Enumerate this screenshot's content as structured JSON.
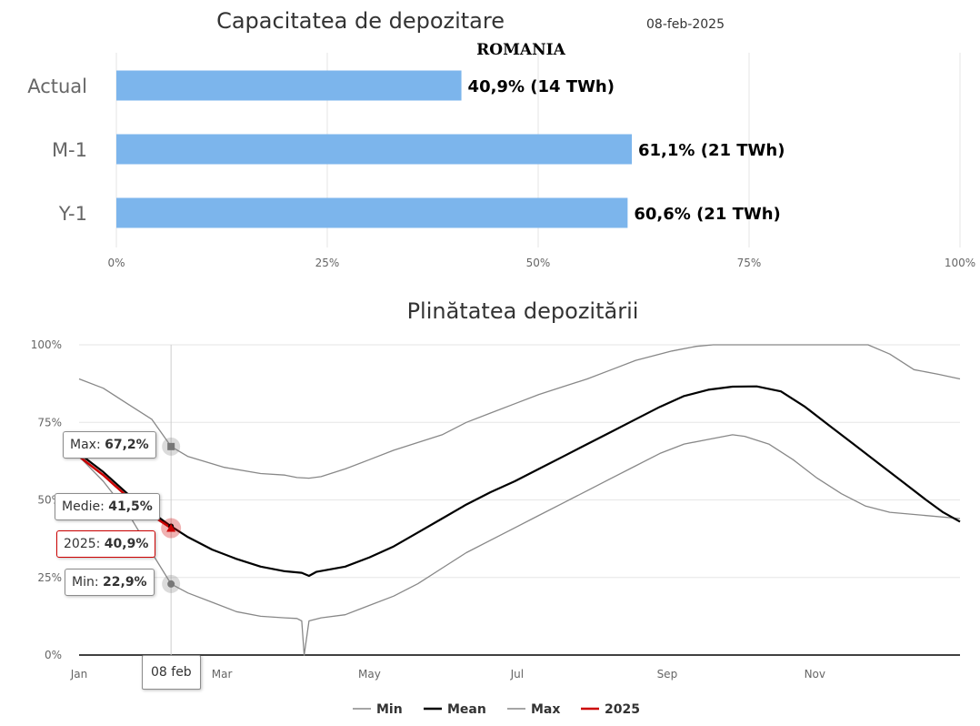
{
  "top_chart": {
    "title": "Capacitatea de depozitare",
    "date": "08-feb-2025",
    "subtitle": "ROMANIA"
  },
  "bottom_chart": {
    "title": "Plinătatea depozitării"
  },
  "tooltips": {
    "crosshair_label": "08 feb",
    "max_label": "Max: ",
    "max_value": "67,2%",
    "mean_label": "Medie: ",
    "mean_value": "41,5%",
    "y2025_label": "2025: ",
    "y2025_value": "40,9%",
    "min_label": "Min: ",
    "min_value": "22,9%"
  },
  "colors": {
    "bar": "#7cb5ec",
    "min_max": "#888888",
    "mean": "#000000",
    "y2025": "#cc0000",
    "grid": "#e6e6e6"
  },
  "chart_data": [
    {
      "type": "bar",
      "orientation": "horizontal",
      "title": "Capacitatea de depozitare 08-feb-2025",
      "subtitle": "ROMANIA",
      "categories": [
        "Actual",
        "M-1",
        "Y-1"
      ],
      "values": [
        40.9,
        61.1,
        60.6
      ],
      "data_labels": [
        "40,9% (14 TWh)",
        "61,1% (21 TWh)",
        "60,6% (21 TWh)"
      ],
      "xlim": [
        0,
        100
      ],
      "x_ticks": [
        0,
        25,
        50,
        75,
        100
      ],
      "x_tick_labels": [
        "0%",
        "25%",
        "50%",
        "75%",
        "100%"
      ]
    },
    {
      "type": "line",
      "title": "Plinătatea depozitării",
      "x_unit": "day_of_year",
      "x_tick_days": [
        0,
        59,
        120,
        181,
        243,
        304
      ],
      "x_tick_labels": [
        "Jan",
        "Mar",
        "May",
        "Jul",
        "Sep",
        "Nov"
      ],
      "xlim": [
        0,
        364
      ],
      "ylim": [
        0,
        100
      ],
      "y_ticks": [
        0,
        25,
        50,
        75,
        100
      ],
      "y_tick_labels": [
        "0%",
        "25%",
        "50%",
        "75%",
        "100%"
      ],
      "highlight_day": 38,
      "legend": [
        "Min",
        "Mean",
        "Max",
        "2025"
      ],
      "series": [
        {
          "name": "Max",
          "points": [
            [
              0,
              89
            ],
            [
              10,
              86
            ],
            [
              20,
              81
            ],
            [
              30,
              76
            ],
            [
              38,
              67.2
            ],
            [
              45,
              64
            ],
            [
              60,
              60.5
            ],
            [
              75,
              58.5
            ],
            [
              85,
              58
            ],
            [
              90,
              57.2
            ],
            [
              95,
              57
            ],
            [
              100,
              57.5
            ],
            [
              110,
              60
            ],
            [
              120,
              63
            ],
            [
              130,
              66
            ],
            [
              140,
              68.5
            ],
            [
              150,
              71
            ],
            [
              160,
              75
            ],
            [
              170,
              78
            ],
            [
              180,
              81
            ],
            [
              190,
              84
            ],
            [
              200,
              86.5
            ],
            [
              210,
              89
            ],
            [
              220,
              92
            ],
            [
              230,
              95
            ],
            [
              245,
              98
            ],
            [
              255,
              99.5
            ],
            [
              262,
              100
            ],
            [
              300,
              100
            ],
            [
              326,
              100
            ],
            [
              335,
              97
            ],
            [
              345,
              92
            ],
            [
              355,
              90.5
            ],
            [
              364,
              89
            ]
          ]
        },
        {
          "name": "Mean",
          "points": [
            [
              0,
              65
            ],
            [
              10,
              59
            ],
            [
              20,
              52
            ],
            [
              30,
              46
            ],
            [
              38,
              41.5
            ],
            [
              45,
              38
            ],
            [
              55,
              34
            ],
            [
              65,
              31
            ],
            [
              75,
              28.5
            ],
            [
              85,
              27
            ],
            [
              92,
              26.5
            ],
            [
              95,
              25.5
            ],
            [
              98,
              26.8
            ],
            [
              110,
              28.5
            ],
            [
              120,
              31.5
            ],
            [
              130,
              35
            ],
            [
              140,
              39.5
            ],
            [
              150,
              44
            ],
            [
              160,
              48.5
            ],
            [
              170,
              52.5
            ],
            [
              180,
              56
            ],
            [
              190,
              60
            ],
            [
              200,
              64
            ],
            [
              210,
              68
            ],
            [
              220,
              72
            ],
            [
              230,
              76
            ],
            [
              240,
              80
            ],
            [
              250,
              83.5
            ],
            [
              260,
              85.5
            ],
            [
              270,
              86.5
            ],
            [
              280,
              86.6
            ],
            [
              290,
              85
            ],
            [
              300,
              80
            ],
            [
              310,
              74
            ],
            [
              320,
              68
            ],
            [
              330,
              62
            ],
            [
              340,
              56
            ],
            [
              350,
              50
            ],
            [
              357,
              46
            ],
            [
              364,
              43
            ]
          ]
        },
        {
          "name": "Min",
          "points": [
            [
              0,
              64
            ],
            [
              10,
              56
            ],
            [
              20,
              46
            ],
            [
              30,
              33
            ],
            [
              38,
              22.9
            ],
            [
              45,
              20
            ],
            [
              55,
              17
            ],
            [
              65,
              14
            ],
            [
              75,
              12.5
            ],
            [
              85,
              12
            ],
            [
              90,
              11.8
            ],
            [
              92,
              11
            ],
            [
              93,
              0
            ],
            [
              95,
              11
            ],
            [
              100,
              12
            ],
            [
              110,
              13
            ],
            [
              120,
              16
            ],
            [
              130,
              19
            ],
            [
              140,
              23
            ],
            [
              150,
              28
            ],
            [
              160,
              33
            ],
            [
              170,
              37
            ],
            [
              180,
              41
            ],
            [
              190,
              45
            ],
            [
              200,
              49
            ],
            [
              210,
              53
            ],
            [
              220,
              57
            ],
            [
              230,
              61
            ],
            [
              240,
              65
            ],
            [
              250,
              68
            ],
            [
              260,
              69.5
            ],
            [
              270,
              71
            ],
            [
              275,
              70.5
            ],
            [
              285,
              68
            ],
            [
              295,
              63
            ],
            [
              305,
              57
            ],
            [
              315,
              52
            ],
            [
              325,
              48
            ],
            [
              335,
              46
            ],
            [
              364,
              44
            ]
          ]
        },
        {
          "name": "2025",
          "points": [
            [
              0,
              64
            ],
            [
              10,
              58
            ],
            [
              20,
              51
            ],
            [
              30,
              45
            ],
            [
              38,
              40.9
            ]
          ]
        }
      ]
    }
  ]
}
